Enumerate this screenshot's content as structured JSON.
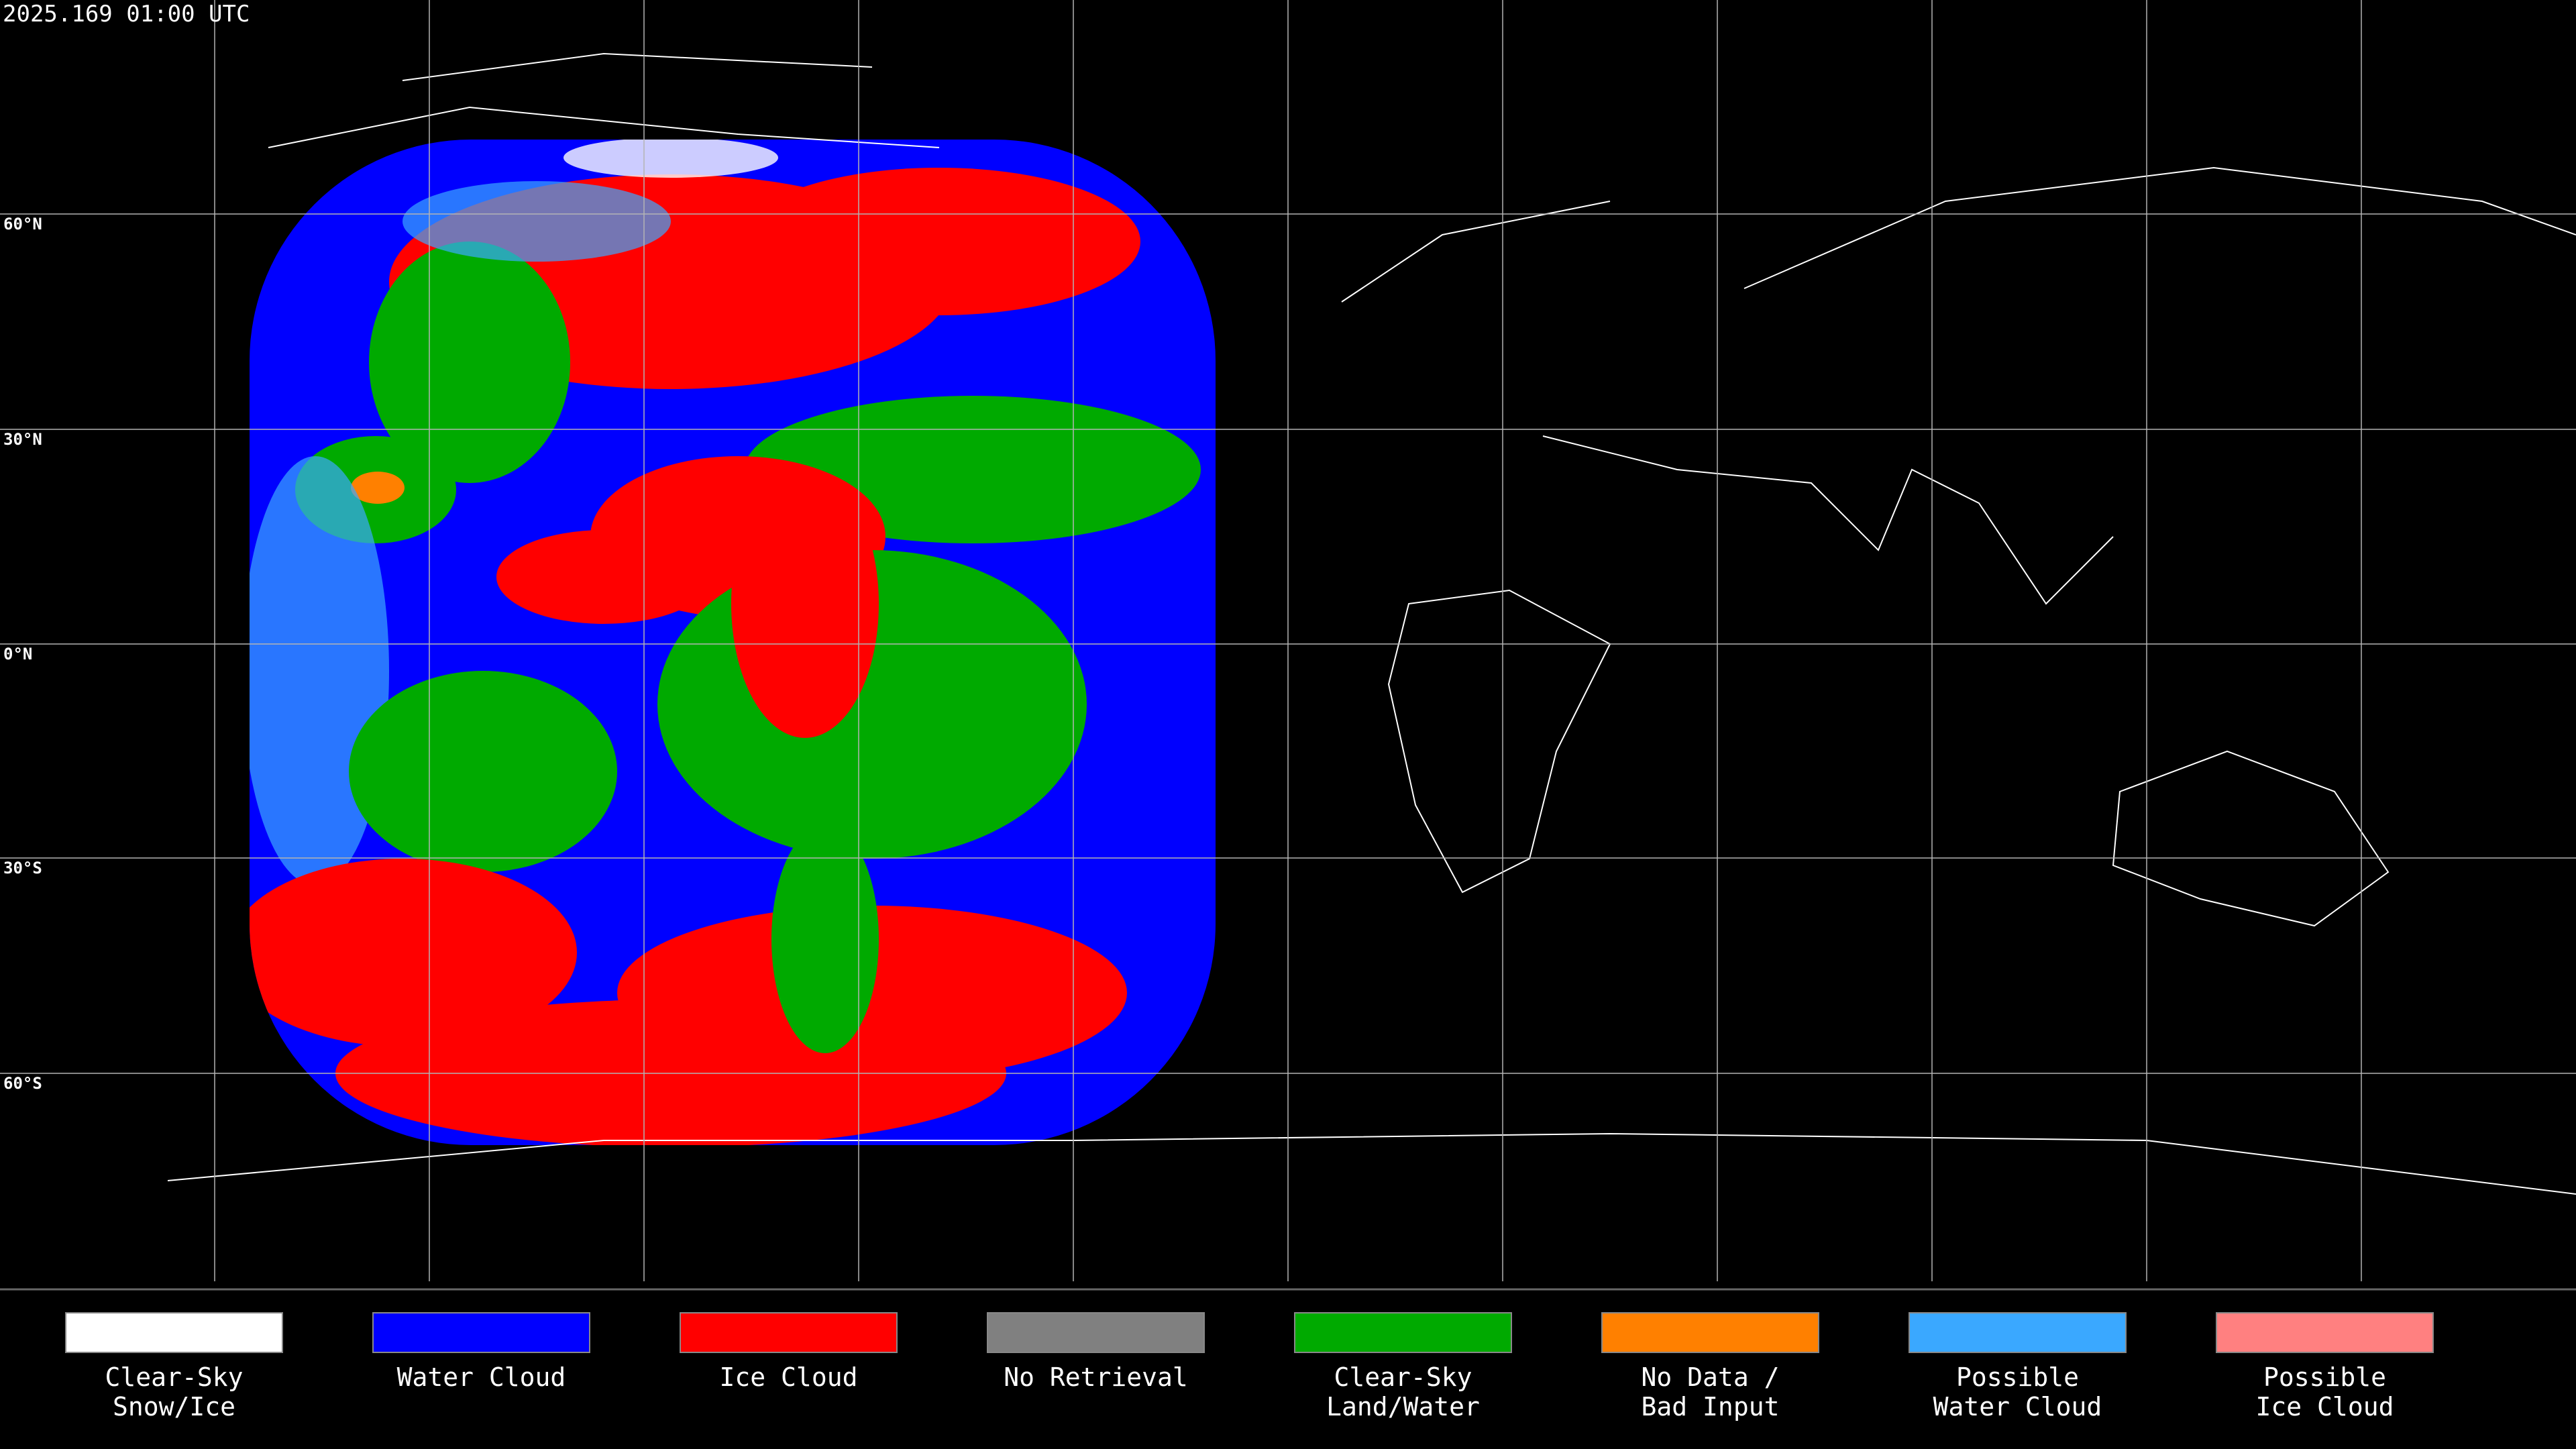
{
  "header": {
    "timestamp": "2025.169 01:00 UTC"
  },
  "map": {
    "latitude_labels": [
      "60°N",
      "30°N",
      "0°N",
      "30°S",
      "60°S"
    ]
  },
  "legend": {
    "items": [
      {
        "lines": [
          "Clear-Sky",
          "Snow/Ice"
        ],
        "color": "#ffffff"
      },
      {
        "lines": [
          "Water Cloud"
        ],
        "color": "#0000ff"
      },
      {
        "lines": [
          "Ice Cloud"
        ],
        "color": "#ff0000"
      },
      {
        "lines": [
          "No Retrieval"
        ],
        "color": "#808080"
      },
      {
        "lines": [
          "Clear-Sky",
          "Land/Water"
        ],
        "color": "#00aa00"
      },
      {
        "lines": [
          "No Data /",
          "Bad Input"
        ],
        "color": "#ff8000"
      },
      {
        "lines": [
          "Possible",
          "Water Cloud"
        ],
        "color": "#3aa8ff"
      },
      {
        "lines": [
          "Possible",
          "Ice Cloud"
        ],
        "color": "#ff8080"
      }
    ]
  }
}
